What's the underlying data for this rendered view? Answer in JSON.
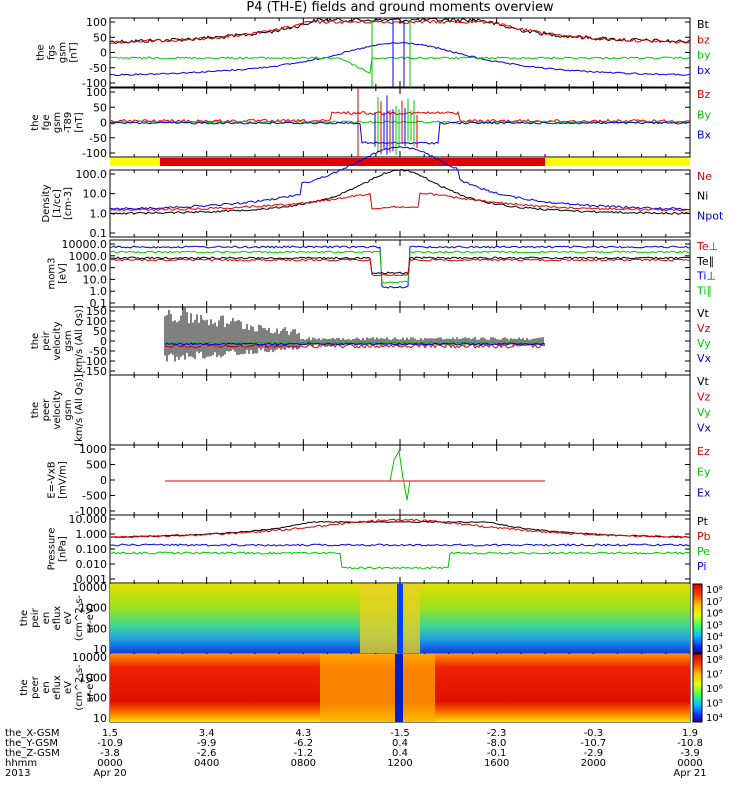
{
  "title": "P4 (TH-E) fields and ground moments overview",
  "colors": {
    "black": "#000000",
    "red": "#e00000",
    "green": "#00c800",
    "blue": "#0000e0",
    "yellow": "#ffff00"
  },
  "chart_data": [
    {
      "id": "fgs",
      "type": "line",
      "ylabel": [
        "the",
        "fgs",
        "gsm",
        "[nT]"
      ],
      "yticks": [
        "100",
        "50",
        "0",
        "-50",
        "-100"
      ],
      "ylim": [
        -100,
        100
      ],
      "legend": [
        {
          "label": "Bt",
          "color": "#000000"
        },
        {
          "label": "bz",
          "color": "#e00000"
        },
        {
          "label": "by",
          "color": "#00c800"
        },
        {
          "label": "bx",
          "color": "#0000e0"
        }
      ]
    },
    {
      "id": "fgs_dc",
      "type": "line",
      "ylabel": [
        "the",
        "fge",
        "gsm",
        "-T89",
        "[nT]"
      ],
      "yticks": [
        "100",
        "50",
        "0",
        "-50",
        "-100"
      ],
      "ylim": [
        -120,
        120
      ],
      "legend": [
        {
          "label": "Bz",
          "color": "#e00000"
        },
        {
          "label": "By",
          "color": "#00c800"
        },
        {
          "label": "Bx",
          "color": "#0000e0"
        }
      ]
    },
    {
      "id": "density",
      "type": "line",
      "scale": "log",
      "ylabel": [
        "Density",
        "[1/cc]",
        "[cm-3]"
      ],
      "yticks": [
        "100.0",
        "10.0",
        "1.0",
        "0.1"
      ],
      "legend": [
        {
          "label": "Ne",
          "color": "#e00000"
        },
        {
          "label": "Ni",
          "color": "#000000"
        },
        {
          "label": "Npot",
          "color": "#0000e0"
        }
      ]
    },
    {
      "id": "temperature",
      "type": "line",
      "scale": "log",
      "ylabel": [
        "mom3",
        "[eV]"
      ],
      "yticks": [
        "10000.0",
        "1000.0",
        "100.0",
        "10.0",
        "1.0",
        "0.1"
      ],
      "legend": [
        {
          "label": "Te⊥",
          "color": "#e00000"
        },
        {
          "label": "Te∥",
          "color": "#000000"
        },
        {
          "label": "Ti⊥",
          "color": "#0000e0"
        },
        {
          "label": "Ti∥",
          "color": "#00c800"
        }
      ]
    },
    {
      "id": "peir_velocity",
      "type": "line",
      "ylabel": [
        "the",
        "peir",
        "velocity",
        "gsm",
        "[km/s (All Qs)]"
      ],
      "yticks": [
        "150",
        "100",
        "50",
        "0",
        "-50",
        "-100",
        "-150"
      ],
      "ylim": [
        -150,
        150
      ],
      "legend": [
        {
          "label": "Vt",
          "color": "#000000"
        },
        {
          "label": "Vz",
          "color": "#e00000"
        },
        {
          "label": "Vy",
          "color": "#00c800"
        },
        {
          "label": "Vx",
          "color": "#0000e0"
        }
      ]
    },
    {
      "id": "peer_velocity",
      "type": "line",
      "ylabel": [
        "the",
        "peer",
        "velocity",
        "gsm",
        "[km/s (All Qs)]"
      ],
      "yticks": [],
      "legend": [
        {
          "label": "Vt",
          "color": "#000000"
        },
        {
          "label": "Vz",
          "color": "#e00000"
        },
        {
          "label": "Vy",
          "color": "#00c800"
        },
        {
          "label": "Vx",
          "color": "#0000e0"
        }
      ]
    },
    {
      "id": "efield",
      "type": "line",
      "ylabel": [
        "E=-VxB",
        "[mV/m]"
      ],
      "yticks": [
        "1000",
        "500",
        "0",
        "-500",
        "-1000"
      ],
      "ylim": [
        -1000,
        1000
      ],
      "legend": [
        {
          "label": "Ez",
          "color": "#e00000"
        },
        {
          "label": "Ey",
          "color": "#00c800"
        },
        {
          "label": "Ex",
          "color": "#0000e0"
        }
      ]
    },
    {
      "id": "pressure",
      "type": "line",
      "scale": "log",
      "ylabel": [
        "Pressure",
        "[nPa]"
      ],
      "yticks": [
        "10.000",
        "1.000",
        "0.100",
        "0.010",
        "0.001"
      ],
      "legend": [
        {
          "label": "Pt",
          "color": "#000000"
        },
        {
          "label": "Pb",
          "color": "#e00000"
        },
        {
          "label": "Pe",
          "color": "#00c800"
        },
        {
          "label": "Pi",
          "color": "#0000e0"
        }
      ]
    },
    {
      "id": "peir_eflux",
      "type": "heatmap",
      "ylabel": [
        "the",
        "peir",
        "en",
        "eflux",
        "eV",
        "(cm^2-s-",
        "sr-eV)"
      ],
      "yticks": [
        "10000",
        "1000",
        "100",
        "10"
      ],
      "colorbar": [
        "10⁸",
        "10⁷",
        "10⁶",
        "10⁵",
        "10⁴",
        "10³"
      ]
    },
    {
      "id": "peer_eflux",
      "type": "heatmap",
      "ylabel": [
        "the",
        "peer",
        "en",
        "eflux",
        "eV",
        "(cm^2-s-",
        "sr-eV)"
      ],
      "yticks": [
        "10000",
        "1000",
        "100",
        "10"
      ],
      "colorbar": [
        "10⁸",
        "10⁷",
        "10⁶",
        "10⁵",
        "10⁴"
      ]
    }
  ],
  "xaxis": {
    "rows": [
      {
        "label": "the_X-GSM",
        "values": [
          "1.5",
          "3.4",
          "4.3",
          "-1.5",
          "-2.3",
          "-0.3",
          "1.9"
        ]
      },
      {
        "label": "the_Y-GSM",
        "values": [
          "-10.9",
          "-9.9",
          "-6.2",
          "0.4",
          "-8.0",
          "-10.7",
          "-10.8"
        ]
      },
      {
        "label": "the_Z-GSM",
        "values": [
          "-3.8",
          "-2.6",
          "-1.2",
          "0.4",
          "-0.1",
          "-2.9",
          "-3.9"
        ]
      },
      {
        "label": "hhmm",
        "values": [
          "0000",
          "0400",
          "0800",
          "1200",
          "1600",
          "2000",
          "0000"
        ]
      }
    ],
    "date_label": "2013",
    "date_start": "Apr 20",
    "date_end": "Apr 21"
  }
}
